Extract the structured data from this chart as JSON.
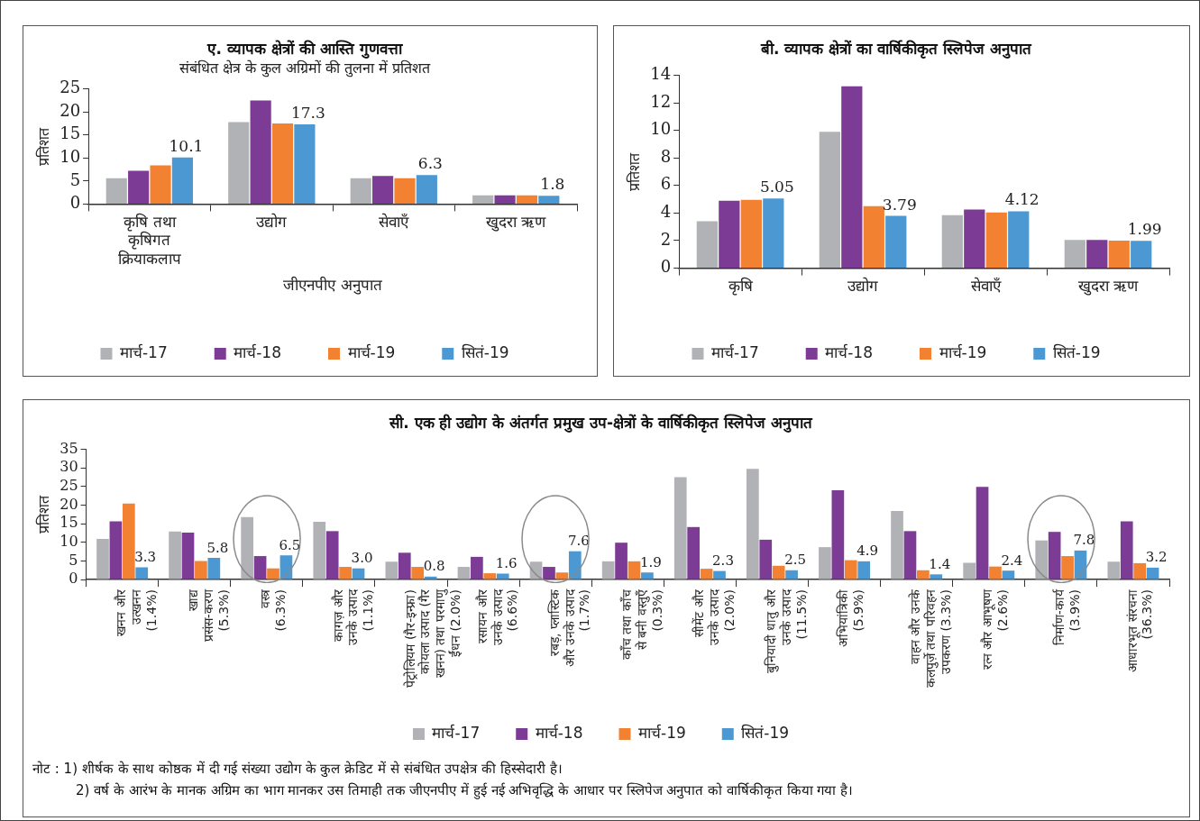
{
  "chart_data": [
    {
      "type": "bar",
      "title": "ए. व्यापक क्षेत्रों की आस्ति गुणवत्ता",
      "subtitle": "संबंधित क्षेत्र के कुल अग्रिमों की तुलना में प्रतिशत",
      "xlabel": "जीएनपीए अनुपात",
      "ylabel": "प्रतिशत",
      "categories": [
        "कृषि तथा\nकृषिगत\nक्रियाकलाप",
        "उद्योग",
        "सेवाएँ",
        "खुदरा ऋण"
      ],
      "series": [
        {
          "name": "मार्च-17",
          "color": "#b1b2b5",
          "values": [
            5.6,
            17.8,
            5.6,
            1.9
          ]
        },
        {
          "name": "मार्च-18",
          "color": "#7c3b94",
          "values": [
            7.2,
            22.5,
            6.1,
            1.9
          ]
        },
        {
          "name": "मार्च-19",
          "color": "#f28232",
          "values": [
            8.4,
            17.5,
            5.6,
            1.9
          ]
        },
        {
          "name": "सितं-19",
          "color": "#4b98d3",
          "values": [
            10.1,
            17.3,
            6.3,
            1.8
          ],
          "value_labels": [
            "10.1",
            "17.3",
            "6.3",
            "1.8"
          ]
        }
      ],
      "ylim": [
        0,
        25
      ],
      "yticks": [
        0,
        5,
        10,
        15,
        20,
        25
      ],
      "legend": "bottom"
    },
    {
      "type": "bar",
      "title": "बी. व्यापक क्षेत्रों का वार्षिकीकृत स्लिपेज अनुपात",
      "ylabel": "प्रतिशत",
      "categories": [
        "कृषि",
        "उद्योग",
        "सेवाएँ",
        "खुदरा ऋण"
      ],
      "series": [
        {
          "name": "मार्च-17",
          "color": "#b1b2b5",
          "values": [
            3.4,
            9.9,
            3.85,
            2.05
          ]
        },
        {
          "name": "मार्च-18",
          "color": "#7c3b94",
          "values": [
            4.9,
            13.2,
            4.25,
            2.05
          ]
        },
        {
          "name": "मार्च-19",
          "color": "#f28232",
          "values": [
            4.95,
            4.5,
            4.05,
            2.0
          ]
        },
        {
          "name": "सितं-19",
          "color": "#4b98d3",
          "values": [
            5.05,
            3.79,
            4.12,
            1.99
          ],
          "value_labels": [
            "5.05",
            "3.79",
            "4.12",
            "1.99"
          ]
        }
      ],
      "ylim": [
        0,
        14
      ],
      "yticks": [
        0,
        2,
        4,
        6,
        8,
        10,
        12,
        14
      ],
      "legend": "bottom"
    },
    {
      "type": "bar",
      "title": "सी. एक ही उद्योग के अंतर्गत प्रमुख उप-क्षेत्रों के वार्षिकीकृत स्लिपेज अनुपात",
      "ylabel": "प्रतिशत",
      "categories": [
        "खनन और\nउत्खनन\n(1.4%)",
        "खाद्य\nप्रसंस-करण\n(5.3%)",
        "वस्त्र\n(6.3%)",
        "कागज़ और\nउनके उत्पाद\n(1.1%)",
        "पेट्रोलियम (गैर-इन्फ्रा)\nकोयला उत्पाद (गैर\nखनन) तथा परमाणु\nईंधन (2.0%)",
        "रसायन और\nउनके उत्पाद\n(6.6%)",
        "रबड़, प्लास्टिक\nऔर उनके उत्पाद\n(1.7%)",
        "काँच तथा काँच\nसे बनी वस्तुएँ\n(0.3%)",
        "सीमेंट और\nउनके उत्पाद\n(2.0%)",
        "बुनियादी धातु और\nउनके उत्पाद\n(11.5%)",
        "अभियांत्रिकी\n(5.9%)",
        "वाहन और उनके\nकलपुर्ज़े तथा परिवहन\nउपकरण (3.3%)",
        "रत्न और आभूषण\n(2.6%)",
        "निर्माण-कार्य\n(3.9%)",
        "आधारभूत संरचना\n(36.3%)"
      ],
      "series": [
        {
          "name": "मार्च-17",
          "color": "#b1b2b5",
          "values": [
            10.9,
            12.9,
            16.8,
            15.5,
            4.8,
            3.4,
            4.8,
            4.9,
            27.5,
            29.7,
            8.7,
            18.4,
            4.5,
            10.5,
            4.8
          ]
        },
        {
          "name": "मार्च-18",
          "color": "#7c3b94",
          "values": [
            15.6,
            12.6,
            6.3,
            13.0,
            7.2,
            6.1,
            3.4,
            9.9,
            14.1,
            10.7,
            24.0,
            13.0,
            24.9,
            12.8,
            15.6
          ]
        },
        {
          "name": "मार्च-19",
          "color": "#f28232",
          "values": [
            20.4,
            5.0,
            3.0,
            3.4,
            3.4,
            1.7,
            1.9,
            4.9,
            2.9,
            3.7,
            5.2,
            2.5,
            3.5,
            6.3,
            4.4
          ]
        },
        {
          "name": "सितं-19",
          "color": "#4b98d3",
          "values": [
            3.3,
            5.8,
            6.5,
            3.0,
            0.8,
            1.6,
            7.6,
            1.9,
            2.3,
            2.5,
            4.9,
            1.4,
            2.4,
            7.8,
            3.2
          ],
          "value_labels": [
            "3.3",
            "5.8",
            "6.5",
            "3.0",
            "0.8",
            "1.6",
            "7.6",
            "1.9",
            "2.3",
            "2.5",
            "4.9",
            "1.4",
            "2.4",
            "7.8",
            "3.2"
          ]
        }
      ],
      "ylim": [
        0,
        35
      ],
      "yticks": [
        0,
        5,
        10,
        15,
        20,
        25,
        30,
        35
      ],
      "legend": "bottom",
      "annotations": [
        "नोट : 1)  शीर्षक के साथ कोष्ठक में दी गई संख्या उद्योग के कुल क्रेडिट में से संबंधित उपक्षेत्र की हिस्सेदारी है।",
        "2)  वर्ष के आरंभ के मानक अग्रिम का भाग मानकर उस तिमाही तक जीएनपीए में हुई नई अभिवृद्धि के आधार पर स्लिपेज अनुपात को वार्षिकीकृत किया गया है।"
      ]
    }
  ]
}
